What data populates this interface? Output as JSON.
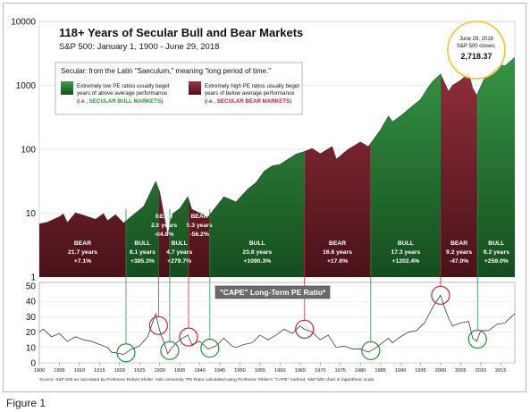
{
  "figure_caption": "Figure 1",
  "chart_data": [
    {
      "type": "area",
      "title": "118+ Years of Secular Bull and Bear Markets",
      "subtitle": "S&P 500: January 1, 1900 - June 29, 2018",
      "yscale": "log",
      "ylim": [
        1,
        10000
      ],
      "xlim": [
        1900,
        2018.5
      ],
      "y_ticks": [
        "1",
        "10",
        "100",
        "1000",
        "10000"
      ],
      "grid": true,
      "series": [
        {
          "x": [
            1900,
            1902,
            1905,
            1906,
            1907,
            1909,
            1911,
            1914,
            1916,
            1917,
            1919,
            1921,
            1923,
            1926,
            1929,
            1930,
            1932,
            1933,
            1935,
            1937,
            1938,
            1942,
            1946,
            1949,
            1952,
            1954,
            1956,
            1958,
            1960,
            1962,
            1964,
            1966,
            1968,
            1970,
            1973,
            1974,
            1977,
            1980,
            1982,
            1985,
            1987,
            1988,
            1990,
            1992,
            1995,
            1997,
            1998,
            2000,
            2002,
            2003,
            2005,
            2007,
            2008,
            2009,
            2011,
            2013,
            2015,
            2016,
            2018.5
          ],
          "y": [
            6.8,
            7.2,
            8.8,
            9.7,
            7.1,
            10.1,
            9.3,
            8.0,
            9.8,
            7.6,
            9.5,
            7.0,
            9.0,
            12.7,
            31.3,
            21.5,
            4.4,
            9.5,
            11.8,
            18.0,
            11.5,
            8.7,
            18.0,
            15.0,
            24.0,
            30.0,
            45.0,
            55.0,
            58.0,
            70.0,
            84.0,
            92.0,
            103.0,
            85.0,
            110.0,
            70.0,
            100.0,
            130.0,
            110.0,
            200.0,
            330.0,
            270.0,
            330.0,
            420.0,
            600.0,
            950.0,
            1150.0,
            1500.0,
            800.0,
            1000.0,
            1200.0,
            1560.0,
            900.0,
            700.0,
            1300.0,
            1700.0,
            2100.0,
            2000.0,
            2718.37
          ]
        }
      ],
      "periods": [
        {
          "kind": "bear",
          "label": "BEAR",
          "years": "21.7 years",
          "return": "+7.1%",
          "start": 1900,
          "end": 1921.6
        },
        {
          "kind": "bull",
          "label": "BULL",
          "years": "8.1 years",
          "return": "+385.3%",
          "start": 1921.6,
          "end": 1929.7
        },
        {
          "kind": "bear",
          "label": "BEAR",
          "years": "2.8 years",
          "return": "-84.8%",
          "start": 1929.7,
          "end": 1932.5
        },
        {
          "kind": "bull",
          "label": "BULL",
          "years": "4.7 years",
          "return": "+279.7%",
          "start": 1932.5,
          "end": 1937.2
        },
        {
          "kind": "bear",
          "label": "BEAR",
          "years": "5.3 years",
          "return": "-56.2%",
          "start": 1937.2,
          "end": 1942.5
        },
        {
          "kind": "bull",
          "label": "BULL",
          "years": "23.8 years",
          "return": "+1090.3%",
          "start": 1942.5,
          "end": 1966.1
        },
        {
          "kind": "bear",
          "label": "BEAR",
          "years": "16.6 years",
          "return": "+17.6%",
          "start": 1966.1,
          "end": 1982.6
        },
        {
          "kind": "bull",
          "label": "BULL",
          "years": "17.3 years",
          "return": "+1202.4%",
          "start": 1982.6,
          "end": 2000.0
        },
        {
          "kind": "bear",
          "label": "BEAR",
          "years": "9.2 years",
          "return": "-47.0%",
          "start": 2000.0,
          "end": 2009.2
        },
        {
          "kind": "bull",
          "label": "BULL",
          "years": "9.2 years",
          "return": "+259.0%",
          "start": 2009.2,
          "end": 2018.5
        }
      ],
      "legend": {
        "heading": "Secular: from the Latin \"Saeculum,\" meaning \"long period of time.\"",
        "bull_line1": "Extremely low PE ratios usually beget",
        "bull_line2": "years of above average performance",
        "bull_line3_prefix": "(i.e., ",
        "bull_line3_em": "SECULAR BULL MARKETS",
        "bull_line3_suffix": ")",
        "bear_line1": "Extremely high PE ratios usually beget",
        "bear_line2": "years of below average performance",
        "bear_line3_prefix": "(i.e., ",
        "bear_line3_em": "SECULAR BEAR MARKETS",
        "bear_line3_suffix": ")"
      },
      "callout": {
        "line1": "June 29, 2018",
        "line2": "S&P 500 closes:",
        "value": "2,718.37"
      },
      "colors": {
        "bull": "#2e8b3e",
        "bull_dark": "#1f6a2b",
        "bear": "#8b2633",
        "bear_dark": "#5a1820",
        "callout": "#f2c230"
      }
    },
    {
      "type": "line",
      "title": "\"CAPE\" Long-Term PE Ratio*",
      "ylim": [
        0,
        50
      ],
      "xlim": [
        1900,
        2018.5
      ],
      "y_ticks": [
        "0",
        "10",
        "20",
        "30",
        "40",
        "50"
      ],
      "x_ticks": [
        "1900",
        "1905",
        "1910",
        "1915",
        "1920",
        "1925",
        "1930",
        "1935",
        "1940",
        "1945",
        "1950",
        "1955",
        "1960",
        "1965",
        "1970",
        "1975",
        "1980",
        "1985",
        "1990",
        "1995",
        "2000",
        "2005",
        "2010",
        "2015"
      ],
      "series": [
        {
          "x": [
            1900,
            1901,
            1903,
            1905,
            1907,
            1909,
            1911,
            1913,
            1915,
            1917,
            1918,
            1920,
            1921,
            1923,
            1925,
            1927,
            1929,
            1930,
            1932,
            1933,
            1935,
            1937,
            1938,
            1940,
            1942,
            1944,
            1946,
            1948,
            1949,
            1951,
            1953,
            1955,
            1957,
            1959,
            1961,
            1963,
            1965,
            1966,
            1968,
            1970,
            1972,
            1974,
            1976,
            1978,
            1980,
            1981,
            1982,
            1984,
            1986,
            1987,
            1988,
            1990,
            1992,
            1994,
            1996,
            1998,
            2000,
            2001,
            2002,
            2003,
            2005,
            2007,
            2008,
            2009,
            2010,
            2012,
            2014,
            2016,
            2018.5
          ],
          "y": [
            20.0,
            22.0,
            17.0,
            19.0,
            14.0,
            17.0,
            15.0,
            14.0,
            12.0,
            10.0,
            7.0,
            6.0,
            5.5,
            9.0,
            11.0,
            17.0,
            32.0,
            21.0,
            6.0,
            10.0,
            15.0,
            18.0,
            12.0,
            14.0,
            9.0,
            11.0,
            16.0,
            11.0,
            10.0,
            12.0,
            13.0,
            18.0,
            15.0,
            18.0,
            22.0,
            19.0,
            24.0,
            22.0,
            20.0,
            15.0,
            18.0,
            10.0,
            11.0,
            9.0,
            9.0,
            8.0,
            7.0,
            10.0,
            14.0,
            16.0,
            13.0,
            17.0,
            20.0,
            21.0,
            26.0,
            36.0,
            44.0,
            36.0,
            29.0,
            24.0,
            26.0,
            27.0,
            16.0,
            14.0,
            21.0,
            21.0,
            25.0,
            26.0,
            32.0
          ]
        }
      ]
    }
  ],
  "labels": {
    "source": "Source: S&P 500 as calculated by Professor Robert Shiller, Yale University  *PE Ratio calculated using Professor Shiller's \"CAPE\" method. S&P 500 chart in logarithmic scale."
  }
}
